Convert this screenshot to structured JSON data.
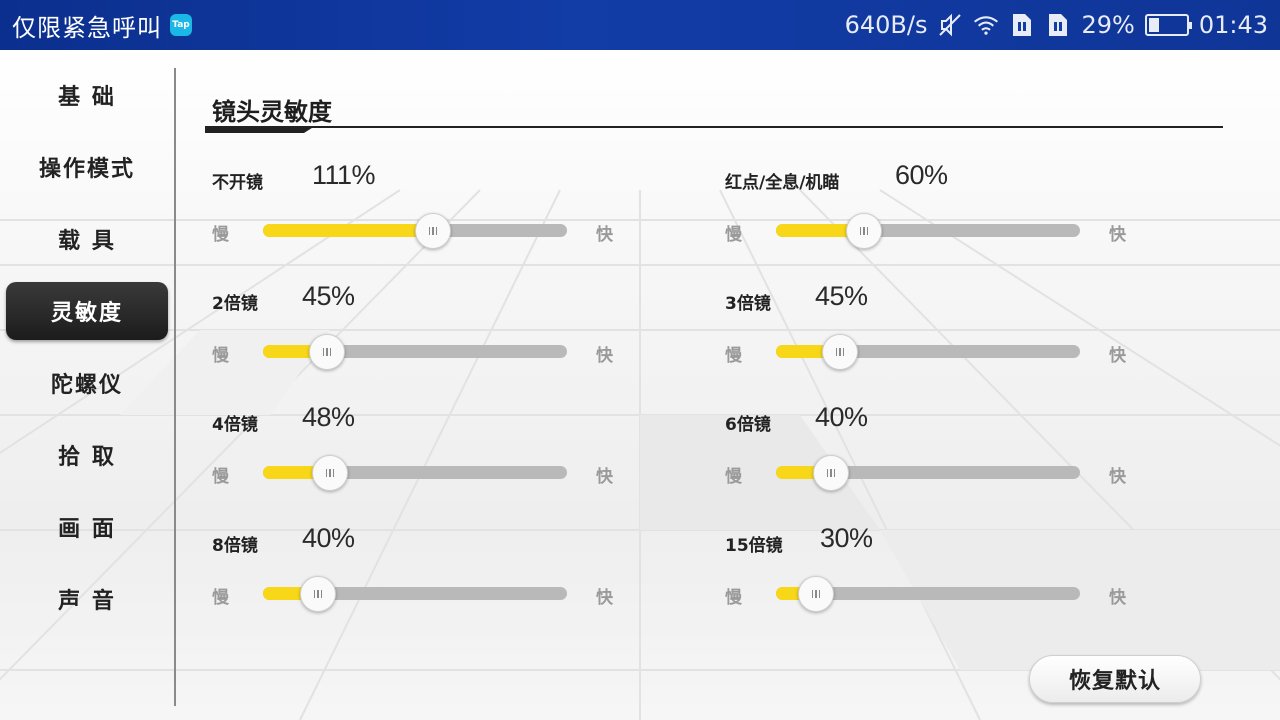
{
  "status_bar": {
    "title": "仅限紧急呼叫",
    "tap_badge": "Tap",
    "net_speed": "640B/s",
    "battery_pct": "29%",
    "battery_level": 0.29,
    "time": "01:43",
    "icons": [
      "mute-icon",
      "wifi-icon",
      "sim1-icon",
      "sim2-icon",
      "battery-icon"
    ]
  },
  "sidebar": {
    "items": [
      {
        "label": "基 础",
        "active": false
      },
      {
        "label": "操作模式",
        "active": false
      },
      {
        "label": "载 具",
        "active": false
      },
      {
        "label": "灵敏度",
        "active": true
      },
      {
        "label": "陀螺仪",
        "active": false
      },
      {
        "label": "拾 取",
        "active": false
      },
      {
        "label": "画 面",
        "active": false
      },
      {
        "label": "声 音",
        "active": false
      }
    ]
  },
  "section": {
    "title": "镜头灵敏度"
  },
  "slider_text": {
    "slow": "慢",
    "fast": "快"
  },
  "settings": [
    {
      "label": "不开镜",
      "value_text": "111%",
      "position": 0.56
    },
    {
      "label": "红点/全息/机瞄",
      "value_text": "60%",
      "position": 0.29
    },
    {
      "label": "2倍镜",
      "value_text": "45%",
      "position": 0.21
    },
    {
      "label": "3倍镜",
      "value_text": "45%",
      "position": 0.21
    },
    {
      "label": "4倍镜",
      "value_text": "48%",
      "position": 0.22
    },
    {
      "label": "6倍镜",
      "value_text": "40%",
      "position": 0.18
    },
    {
      "label": "8倍镜",
      "value_text": "40%",
      "position": 0.18
    },
    {
      "label": "15倍镜",
      "value_text": "30%",
      "position": 0.13
    }
  ],
  "reset_button": {
    "label": "恢复默认"
  },
  "colors": {
    "accent": "#f7d718",
    "track": "#b9b9b9",
    "active_nav": "#2a2a2a",
    "status_bar": "#123ca6"
  }
}
